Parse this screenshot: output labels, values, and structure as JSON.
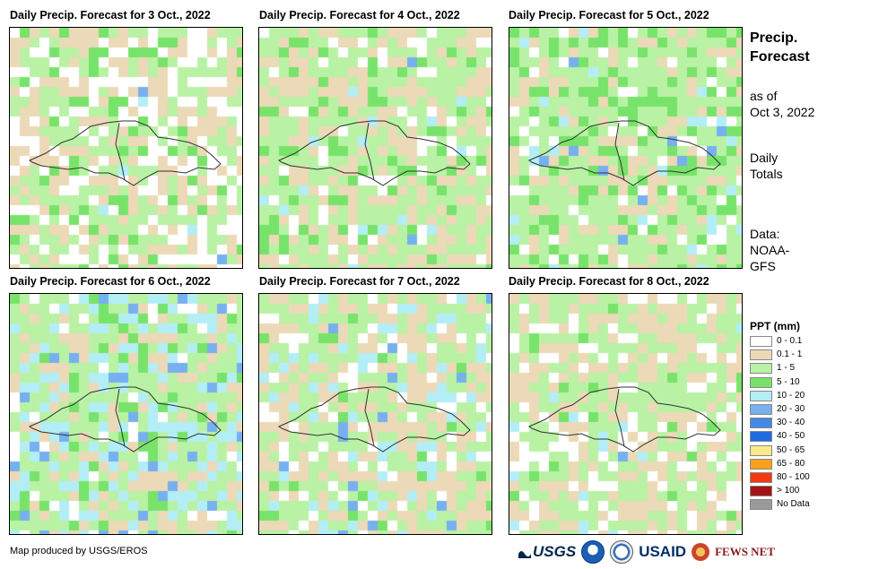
{
  "panels": [
    {
      "title": "Daily Precip. Forecast for 3 Oct., 2022",
      "seed": 3
    },
    {
      "title": "Daily Precip. Forecast for 4 Oct., 2022",
      "seed": 4
    },
    {
      "title": "Daily Precip. Forecast for 5 Oct., 2022",
      "seed": 5
    },
    {
      "title": "Daily Precip. Forecast for 6 Oct., 2022",
      "seed": 6
    },
    {
      "title": "Daily Precip. Forecast for 7 Oct., 2022",
      "seed": 7
    },
    {
      "title": "Daily Precip. Forecast for 8 Oct., 2022",
      "seed": 8
    }
  ],
  "side": {
    "title_line1": "Precip.",
    "title_line2": "Forecast",
    "asof_line1": "as of",
    "asof_line2": "Oct 3, 2022",
    "daily_line1": "Daily",
    "daily_line2": "Totals",
    "data_line1": "Data:",
    "data_line2": "NOAA-",
    "data_line3": "GFS"
  },
  "legend": {
    "title": "PPT (mm)",
    "items": [
      {
        "label": "0 - 0.1",
        "color": "#ffffff"
      },
      {
        "label": "0.1 - 1",
        "color": "#ecd9b7"
      },
      {
        "label": "1 - 5",
        "color": "#b9f2a5"
      },
      {
        "label": "5 - 10",
        "color": "#78e36a"
      },
      {
        "label": "10 - 20",
        "color": "#b3eef6"
      },
      {
        "label": "20 - 30",
        "color": "#77b0ee"
      },
      {
        "label": "30 - 40",
        "color": "#4389e6"
      },
      {
        "label": "40 - 50",
        "color": "#1f6be0"
      },
      {
        "label": "50 - 65",
        "color": "#fde98a"
      },
      {
        "label": "65 - 80",
        "color": "#f9a11b"
      },
      {
        "label": "80 - 100",
        "color": "#f23a12"
      },
      {
        "label": "> 100",
        "color": "#a51414"
      },
      {
        "label": "No Data",
        "color": "#999999"
      }
    ]
  },
  "footer": {
    "credit": "Map produced by USGS/EROS",
    "logo_usgs": "USGS",
    "logo_usaid": "USAID",
    "logo_fews": "FEWS NET"
  }
}
